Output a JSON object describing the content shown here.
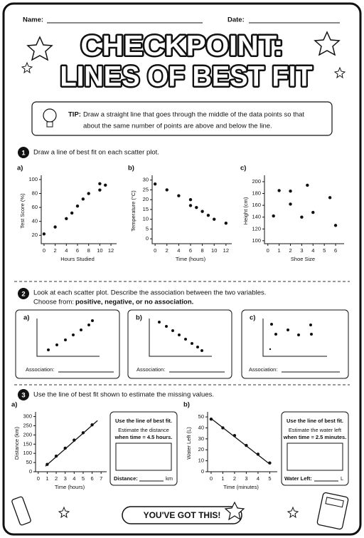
{
  "header": {
    "name_label": "Name:",
    "date_label": "Date:",
    "title_line1": "CHECKPOINT:",
    "title_line2": "LINES OF BEST FIT"
  },
  "tip": {
    "label": "TIP:",
    "lines": [
      "Draw a straight line that goes through the middle of the data points so that",
      "about the same number of points are above and below the line."
    ]
  },
  "section1": {
    "number": "1",
    "instruction": "Draw a line of best fit on each scatter plot."
  },
  "section2": {
    "number": "2",
    "instruction": "Look at each scatter plot. Describe the association between the two variables.",
    "choose": "Choose from:",
    "choices": "positive, negative, or no association.",
    "panels": [
      {
        "label": "a)",
        "answer_label": "Association:"
      },
      {
        "label": "b)",
        "answer_label": "Association:"
      },
      {
        "label": "c)",
        "answer_label": "Association:"
      }
    ]
  },
  "section3": {
    "number": "3",
    "instruction": "Use the line of best fit shown to estimate the missing values.",
    "boxes": [
      {
        "heading": "Use the line of best fit.",
        "lines": [
          "Estimate the distance",
          "when time = 4.5 hours."
        ],
        "answer_label": "Distance:",
        "unit": "km"
      },
      {
        "heading": "Use the line of best fit.",
        "lines": [
          "Estimate the water left",
          "when time = 2.5 minutes."
        ],
        "answer_label": "Water Left:",
        "unit": "L"
      }
    ]
  },
  "footer": {
    "text": "YOU'VE GOT THIS!"
  },
  "chart_data": [
    {
      "type": "scatter",
      "label": "a)",
      "xlabel": "Hours Studied",
      "ylabel": "Test Score (%)",
      "xlim": [
        -0.5,
        12.5
      ],
      "ylim": [
        8,
        102
      ],
      "xticks": [
        0,
        2,
        4,
        6,
        8,
        10,
        12
      ],
      "yticks": [
        20,
        40,
        60,
        80,
        100
      ],
      "x": [
        0,
        2,
        4,
        5,
        6,
        7,
        8,
        10,
        10,
        11
      ],
      "y": [
        22,
        32,
        44,
        52,
        62,
        72,
        80,
        85,
        94,
        92
      ]
    },
    {
      "type": "scatter",
      "label": "b)",
      "xlabel": "Time (hours)",
      "ylabel": "Temperature (°C)",
      "xlim": [
        -0.5,
        12.5
      ],
      "ylim": [
        -2.5,
        31
      ],
      "xticks": [
        0,
        2,
        4,
        6,
        8,
        10,
        12
      ],
      "yticks": [
        0,
        5,
        10,
        15,
        20,
        25,
        30
      ],
      "x": [
        0,
        2,
        4,
        6,
        6,
        7,
        8,
        9,
        10,
        12
      ],
      "y": [
        28,
        25,
        22,
        20,
        17,
        16,
        14,
        12,
        10,
        8
      ]
    },
    {
      "type": "scatter",
      "label": "c)",
      "xlabel": "Shoe Size",
      "ylabel": "Height (cm)",
      "xlim": [
        -0.3,
        6.5
      ],
      "ylim": [
        95,
        206
      ],
      "xticks": [
        0,
        1,
        2,
        3,
        4,
        5,
        6
      ],
      "yticks": [
        100,
        120,
        140,
        160,
        180,
        200
      ],
      "x": [
        0.5,
        1,
        2,
        2,
        3,
        3.5,
        4,
        5.5,
        6
      ],
      "y": [
        142,
        185,
        184,
        162,
        140,
        194,
        148,
        173,
        126
      ]
    },
    {
      "type": "scatter",
      "label": "a)",
      "xlabel": "Time (hours)",
      "ylabel": "Distance (km)",
      "xlim": [
        -0.3,
        7.3
      ],
      "ylim": [
        0,
        310
      ],
      "xticks": [
        0,
        1,
        2,
        3,
        4,
        5,
        6,
        7
      ],
      "yticks": [
        0,
        50,
        100,
        150,
        200,
        250,
        300
      ],
      "x": [
        1,
        2,
        3,
        4,
        5,
        6
      ],
      "y": [
        40,
        85,
        128,
        172,
        212,
        255
      ],
      "fit_line": {
        "x": [
          0.8,
          6.6
        ],
        "y": [
          30,
          278
        ]
      }
    },
    {
      "type": "scatter",
      "label": "b)",
      "xlabel": "Time (minutes)",
      "ylabel": "Water Left (L)",
      "xlim": [
        -0.3,
        5.4
      ],
      "ylim": [
        0,
        52
      ],
      "xticks": [
        0,
        1,
        2,
        3,
        4,
        5
      ],
      "yticks": [
        0,
        10,
        20,
        30,
        40,
        50
      ],
      "x": [
        0,
        1,
        2,
        3,
        4,
        5
      ],
      "y": [
        48,
        40,
        33,
        24,
        16,
        8
      ],
      "fit_line": {
        "x": [
          0,
          5
        ],
        "y": [
          48.5,
          7
        ]
      }
    }
  ]
}
